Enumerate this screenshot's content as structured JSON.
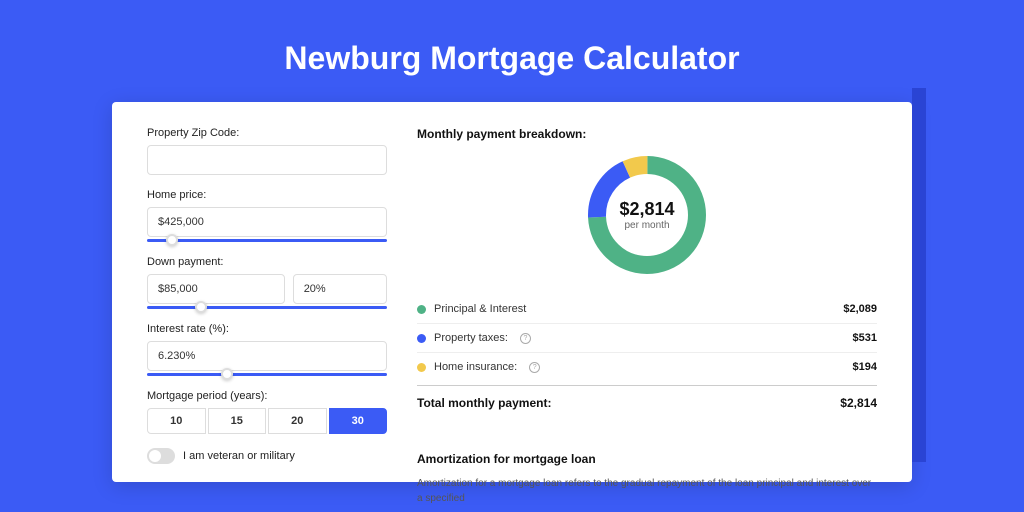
{
  "page": {
    "title": "Newburg Mortgage Calculator",
    "background_color": "#3b5bf5",
    "accent_color": "#3b5bf5"
  },
  "form": {
    "zip_label": "Property Zip Code:",
    "zip_value": "",
    "home_price_label": "Home price:",
    "home_price_value": "$425,000",
    "home_price_slider_pct": 8,
    "down_payment_label": "Down payment:",
    "down_payment_value": "$85,000",
    "down_payment_pct": "20%",
    "down_payment_slider_pct": 20,
    "interest_label": "Interest rate (%):",
    "interest_value": "6.230%",
    "interest_slider_pct": 31,
    "period_label": "Mortgage period (years):",
    "periods": [
      "10",
      "15",
      "20",
      "30"
    ],
    "period_active": "30",
    "veteran_label": "I am veteran or military",
    "veteran_on": false
  },
  "breakdown": {
    "title": "Monthly payment breakdown:",
    "donut": {
      "center_value": "$2,814",
      "center_sub": "per month",
      "slices": [
        {
          "label": "Principal & Interest",
          "value_label": "$2,089",
          "value": 2089,
          "color": "#4fb286",
          "has_info": false
        },
        {
          "label": "Property taxes:",
          "value_label": "$531",
          "value": 531,
          "color": "#3b5bf5",
          "has_info": true
        },
        {
          "label": "Home insurance:",
          "value_label": "$194",
          "value": 194,
          "color": "#f2c94c",
          "has_info": true
        }
      ],
      "stroke_width": 18
    },
    "total_label": "Total monthly payment:",
    "total_value": "$2,814"
  },
  "amortization": {
    "title": "Amortization for mortgage loan",
    "text": "Amortization for a mortgage loan refers to the gradual repayment of the loan principal and interest over a specified"
  }
}
